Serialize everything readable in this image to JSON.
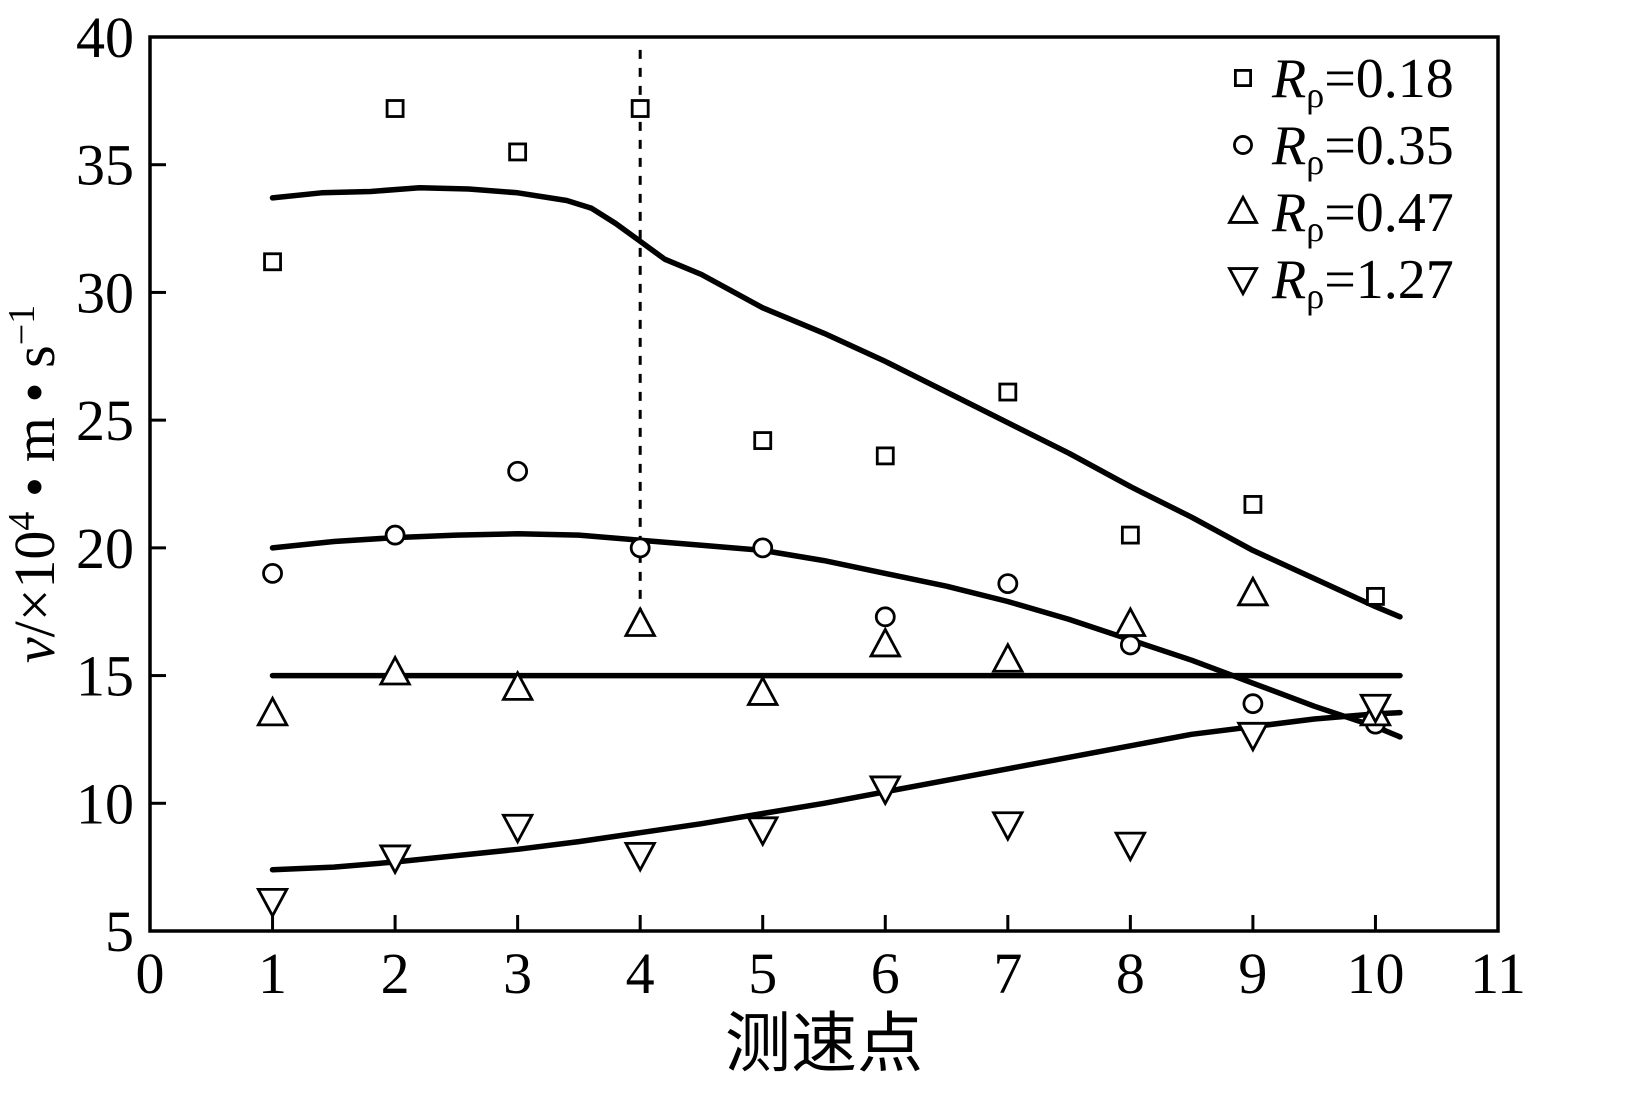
{
  "figure": {
    "background": "#ffffff",
    "stroke_color": "#000000"
  },
  "chart_data": {
    "type": "scatter",
    "title": "",
    "xlabel": "测速点",
    "ylabel": "v/×10⁴ • m • s⁻¹",
    "ylabel_parts": [
      {
        "text": "v",
        "style": "italic"
      },
      {
        "text": "/×10",
        "style": "normal"
      },
      {
        "text": "4",
        "style": "sup"
      },
      {
        "text": " • m • s",
        "style": "normal"
      },
      {
        "text": "−1",
        "style": "sup"
      }
    ],
    "xlim": [
      0,
      11
    ],
    "ylim": [
      5,
      40
    ],
    "xticks": [
      0,
      1,
      2,
      3,
      4,
      5,
      6,
      7,
      8,
      9,
      10,
      11
    ],
    "yticks": [
      5,
      10,
      15,
      20,
      25,
      30,
      35,
      40
    ],
    "grid": false,
    "x": [
      1,
      2,
      3,
      4,
      5,
      6,
      7,
      8,
      9,
      10
    ],
    "series": [
      {
        "name": "Rρ=0.18",
        "marker": "square",
        "values": [
          31.2,
          37.2,
          35.5,
          37.2,
          24.2,
          23.6,
          26.1,
          20.5,
          21.7,
          18.1
        ]
      },
      {
        "name": "Rρ=0.35",
        "marker": "circle",
        "values": [
          19.0,
          20.5,
          23.0,
          20.0,
          20.0,
          17.3,
          18.6,
          16.2,
          13.9,
          13.1
        ]
      },
      {
        "name": "Rρ=0.47",
        "marker": "triangle-up",
        "values": [
          13.5,
          15.1,
          14.5,
          17.0,
          14.3,
          16.2,
          15.6,
          17.0,
          18.2,
          13.5
        ]
      },
      {
        "name": "Rρ=1.27",
        "marker": "triangle-down",
        "values": [
          6.2,
          7.9,
          9.1,
          8.0,
          9.0,
          10.6,
          9.2,
          8.4,
          12.7,
          13.8
        ]
      }
    ],
    "fit_curves": [
      {
        "series": "0.18",
        "points": [
          [
            1.0,
            33.7
          ],
          [
            1.4,
            33.9
          ],
          [
            1.8,
            33.95
          ],
          [
            2.2,
            34.1
          ],
          [
            2.6,
            34.05
          ],
          [
            3.0,
            33.9
          ],
          [
            3.4,
            33.6
          ],
          [
            3.6,
            33.3
          ],
          [
            3.8,
            32.7
          ],
          [
            4.0,
            32.0
          ],
          [
            4.2,
            31.3
          ],
          [
            4.5,
            30.7
          ],
          [
            5.0,
            29.4
          ],
          [
            5.5,
            28.4
          ],
          [
            6.0,
            27.3
          ],
          [
            6.5,
            26.1
          ],
          [
            7.0,
            24.9
          ],
          [
            7.5,
            23.7
          ],
          [
            8.0,
            22.4
          ],
          [
            8.5,
            21.2
          ],
          [
            9.0,
            19.9
          ],
          [
            9.5,
            18.8
          ],
          [
            10.0,
            17.7
          ],
          [
            10.2,
            17.3
          ]
        ]
      },
      {
        "series": "0.35",
        "points": [
          [
            1.0,
            20.0
          ],
          [
            1.5,
            20.25
          ],
          [
            2.0,
            20.4
          ],
          [
            2.5,
            20.5
          ],
          [
            3.0,
            20.55
          ],
          [
            3.5,
            20.5
          ],
          [
            4.0,
            20.3
          ],
          [
            4.5,
            20.1
          ],
          [
            5.0,
            19.9
          ],
          [
            5.5,
            19.5
          ],
          [
            6.0,
            19.0
          ],
          [
            6.5,
            18.5
          ],
          [
            7.0,
            17.9
          ],
          [
            7.5,
            17.2
          ],
          [
            8.0,
            16.4
          ],
          [
            8.5,
            15.6
          ],
          [
            9.0,
            14.7
          ],
          [
            9.5,
            13.8
          ],
          [
            10.0,
            13.0
          ],
          [
            10.2,
            12.6
          ]
        ]
      },
      {
        "series": "0.47",
        "points": [
          [
            1.0,
            15.0
          ],
          [
            10.2,
            15.0
          ]
        ]
      },
      {
        "series": "1.27",
        "points": [
          [
            1.0,
            7.4
          ],
          [
            1.5,
            7.5
          ],
          [
            2.0,
            7.7
          ],
          [
            2.5,
            7.95
          ],
          [
            3.0,
            8.2
          ],
          [
            3.5,
            8.5
          ],
          [
            4.0,
            8.85
          ],
          [
            4.5,
            9.2
          ],
          [
            5.0,
            9.6
          ],
          [
            5.5,
            10.0
          ],
          [
            6.0,
            10.45
          ],
          [
            6.5,
            10.9
          ],
          [
            7.0,
            11.35
          ],
          [
            7.5,
            11.8
          ],
          [
            8.0,
            12.25
          ],
          [
            8.5,
            12.7
          ],
          [
            9.0,
            13.0
          ],
          [
            9.5,
            13.3
          ],
          [
            10.0,
            13.5
          ],
          [
            10.2,
            13.55
          ]
        ]
      }
    ],
    "reference_line": {
      "x": 4,
      "y_from": 17.3,
      "y_to": 39.7,
      "style": "dashed"
    },
    "legend": {
      "position": "top-right",
      "items": [
        {
          "marker": "square",
          "var": "R",
          "sub": "ρ",
          "value": "=0.18"
        },
        {
          "marker": "circle",
          "var": "R",
          "sub": "ρ",
          "value": "=0.35"
        },
        {
          "marker": "triangle-up",
          "var": "R",
          "sub": "ρ",
          "value": "=0.47"
        },
        {
          "marker": "triangle-down",
          "var": "R",
          "sub": "ρ",
          "value": "=1.27"
        }
      ]
    }
  }
}
